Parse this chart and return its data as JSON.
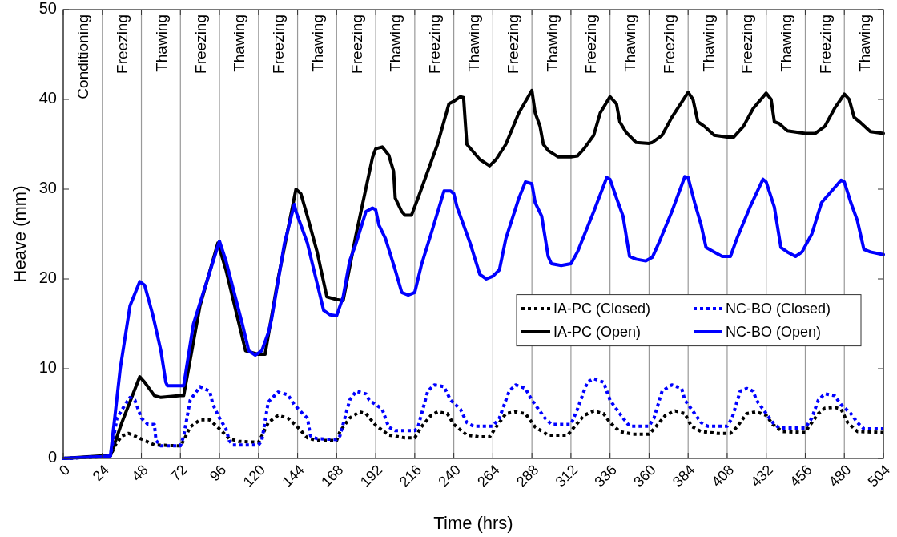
{
  "chart_data": {
    "type": "line",
    "xlabel": "Time (hrs)",
    "ylabel": "Heave (mm)",
    "xlim": [
      0,
      504
    ],
    "xticks": [
      0,
      24,
      48,
      72,
      96,
      120,
      144,
      168,
      192,
      216,
      240,
      264,
      288,
      312,
      336,
      360,
      384,
      408,
      432,
      456,
      480,
      504
    ],
    "ylim": [
      0,
      50
    ],
    "yticks": [
      0,
      10,
      20,
      30,
      40,
      50
    ],
    "legend": "right",
    "grid": "x",
    "annotations": [
      "Conditioning",
      "Freezing",
      "Thawing",
      "Freezing",
      "Thawing",
      "Freezing",
      "Thawing",
      "Freezing",
      "Thawing",
      "Freezing",
      "Thawing",
      "Freezing",
      "Thawing",
      "Freezing",
      "Thawing",
      "Freezing",
      "Thawing",
      "Freezing",
      "Thawing",
      "Freezing",
      "Thawing"
    ],
    "series": [
      {
        "name": "IA-PC (Closed)",
        "color": "#000000",
        "line_style": "dotted",
        "x": [
          0,
          24,
          29,
          32,
          36,
          40,
          44,
          50,
          56,
          72,
          74,
          78,
          84,
          90,
          96,
          102,
          108,
          120,
          122,
          126,
          132,
          138,
          144,
          150,
          156,
          168,
          170,
          176,
          182,
          186,
          192,
          200,
          210,
          216,
          220,
          226,
          230,
          236,
          240,
          248,
          256,
          262,
          266,
          272,
          278,
          284,
          290,
          298,
          310,
          314,
          320,
          326,
          332,
          336,
          342,
          350,
          360,
          364,
          370,
          376,
          382,
          386,
          392,
          402,
          410,
          414,
          420,
          426,
          432,
          436,
          442,
          456,
          458,
          464,
          468,
          474,
          478,
          482,
          488,
          504
        ],
        "values": [
          0,
          0.2,
          0.3,
          1.5,
          2.5,
          2.8,
          2.5,
          2,
          1.5,
          1.4,
          2,
          3.5,
          4.3,
          4.3,
          3.3,
          2.2,
          1.9,
          1.8,
          2.5,
          4,
          4.8,
          4.5,
          3.5,
          2.3,
          2,
          2,
          3,
          4.5,
          5.2,
          5,
          3.7,
          2.6,
          2.3,
          2.3,
          3.5,
          4.8,
          5.2,
          5,
          3.8,
          2.6,
          2.4,
          2.4,
          3.5,
          5,
          5.2,
          5,
          3.5,
          2.6,
          2.6,
          3.5,
          4.8,
          5.3,
          5,
          4,
          3,
          2.7,
          2.7,
          3.5,
          4.8,
          5.3,
          5,
          3.6,
          3,
          2.8,
          2.8,
          3.5,
          5,
          5.2,
          4.8,
          3.8,
          3,
          2.9,
          3.5,
          5,
          5.6,
          5.7,
          5.5,
          4,
          3,
          2.9
        ]
      },
      {
        "name": "IA-PC (Open)",
        "color": "#000000",
        "line_style": "solid",
        "x": [
          0,
          24,
          29,
          36,
          47,
          50,
          56,
          60,
          72,
          74,
          84,
          95,
          100,
          108,
          112,
          120,
          124,
          132,
          143,
          146,
          150,
          156,
          162,
          168,
          172,
          180,
          190,
          192,
          196,
          200,
          203,
          204,
          208,
          210,
          214,
          218,
          230,
          237,
          240,
          244,
          246,
          248,
          256,
          262,
          266,
          272,
          280,
          288,
          290,
          293,
          295,
          298,
          304,
          312,
          316,
          320,
          326,
          330,
          336,
          340,
          342,
          346,
          352,
          360,
          362,
          368,
          374,
          384,
          387,
          390,
          394,
          400,
          408,
          412,
          418,
          424,
          432,
          435,
          437,
          440,
          445,
          456,
          462,
          468,
          474,
          480,
          483,
          486,
          490,
          496,
          504
        ],
        "values": [
          0,
          0.3,
          0.3,
          4,
          9.1,
          8.5,
          7,
          6.8,
          7,
          7,
          17,
          24,
          21,
          15,
          12,
          11.6,
          11.6,
          20,
          30,
          29.5,
          27,
          23,
          18,
          17.7,
          17.6,
          25,
          33.5,
          34.5,
          34.7,
          33.8,
          32,
          29,
          27.5,
          27.1,
          27.1,
          29,
          35,
          39.5,
          39.8,
          40.3,
          40.2,
          35,
          33.3,
          32.6,
          33.3,
          35,
          38.5,
          41,
          38.5,
          37,
          35,
          34.3,
          33.6,
          33.6,
          33.7,
          34.5,
          36,
          38.5,
          40.3,
          39.5,
          37.5,
          36.3,
          35.2,
          35.1,
          35.2,
          36,
          38,
          40.8,
          40,
          37.5,
          37,
          36,
          35.8,
          35.8,
          37,
          39,
          40.7,
          40,
          37.5,
          37.3,
          36.5,
          36.2,
          36.2,
          37,
          39,
          40.6,
          40,
          38,
          37.4,
          36.4,
          36.2
        ]
      },
      {
        "name": "NC-BO (Closed)",
        "color": "#0000ff",
        "line_style": "dotted",
        "x": [
          0,
          24,
          29,
          33,
          38,
          41,
          44,
          48,
          52,
          56,
          57,
          60,
          72,
          74,
          78,
          84,
          90,
          92,
          96,
          100,
          102,
          104,
          120,
          122,
          126,
          132,
          138,
          142,
          146,
          150,
          152,
          156,
          168,
          170,
          176,
          180,
          186,
          188,
          192,
          196,
          200,
          204,
          216,
          218,
          224,
          228,
          234,
          238,
          244,
          248,
          252,
          264,
          268,
          274,
          278,
          284,
          288,
          292,
          296,
          300,
          312,
          316,
          322,
          326,
          332,
          336,
          340,
          344,
          348,
          360,
          363,
          368,
          374,
          380,
          382,
          388,
          392,
          396,
          408,
          411,
          416,
          420,
          424,
          426,
          430,
          436,
          440,
          456,
          460,
          464,
          468,
          474,
          478,
          484,
          488,
          492,
          504
        ],
        "values": [
          0,
          0.2,
          0.3,
          4.5,
          6,
          6.8,
          6.5,
          4.5,
          3.8,
          3.8,
          2,
          1.4,
          1.4,
          2.5,
          6.5,
          8,
          7.5,
          6,
          4.5,
          3.3,
          2,
          1.5,
          1.5,
          2,
          6.3,
          7.4,
          7.1,
          6,
          5.2,
          4.5,
          2.5,
          2.2,
          2.1,
          2.5,
          6.5,
          7.5,
          7.2,
          6.5,
          6,
          5.5,
          3.5,
          3.1,
          3.1,
          3.5,
          7.5,
          8.2,
          8,
          6.5,
          5.5,
          4,
          3.6,
          3.6,
          4.5,
          7.5,
          8.2,
          7.8,
          6.5,
          5.5,
          4.5,
          3.8,
          3.8,
          5.5,
          8.5,
          8.9,
          8.5,
          6.5,
          5.5,
          4.5,
          3.6,
          3.6,
          4.5,
          7.5,
          8.2,
          7.8,
          6.5,
          5,
          4,
          3.6,
          3.6,
          4.5,
          7.5,
          7.8,
          7.5,
          6.5,
          5.5,
          4,
          3.4,
          3.4,
          4.5,
          6.5,
          7.2,
          7,
          6,
          5,
          4,
          3.3,
          3.3
        ]
      },
      {
        "name": "NC-BO (Open)",
        "color": "#0000ff",
        "line_style": "solid",
        "x": [
          0,
          24,
          29,
          35,
          41,
          47,
          50,
          55,
          60,
          63,
          64,
          72,
          74,
          80,
          96,
          100,
          110,
          114,
          118,
          122,
          126,
          128,
          136,
          142,
          143,
          146,
          150,
          156,
          160,
          164,
          168,
          172,
          176,
          180,
          186,
          190,
          192,
          194,
          198,
          204,
          208,
          212,
          216,
          220,
          226,
          234,
          238,
          240,
          242,
          246,
          250,
          256,
          260,
          264,
          268,
          272,
          280,
          284,
          288,
          290,
          294,
          298,
          300,
          306,
          312,
          316,
          320,
          326,
          334,
          336,
          340,
          344,
          348,
          352,
          358,
          362,
          366,
          374,
          382,
          384,
          388,
          392,
          395,
          400,
          405,
          410,
          414,
          422,
          430,
          432,
          437,
          441,
          445,
          450,
          454,
          460,
          466,
          478,
          480,
          484,
          488,
          492,
          496,
          504
        ],
        "values": [
          0,
          0.2,
          0.3,
          10,
          17,
          19.7,
          19.3,
          16,
          12,
          8.5,
          8.1,
          8.1,
          8.1,
          15,
          24.2,
          22,
          15,
          12,
          11.5,
          12,
          14,
          15.5,
          24,
          28.3,
          27.5,
          26,
          24,
          19.5,
          16.5,
          16,
          15.9,
          18,
          22,
          24,
          27.5,
          27.9,
          27.7,
          26,
          24.5,
          21,
          18.5,
          18.2,
          18.5,
          21.5,
          25,
          29.8,
          29.8,
          29.5,
          28,
          26,
          24,
          20.5,
          20,
          20.3,
          21,
          24.5,
          29,
          30.8,
          30.6,
          28.5,
          27,
          22.5,
          21.7,
          21.5,
          21.7,
          23,
          24.8,
          27.5,
          31.3,
          31.1,
          29,
          27,
          22.5,
          22.2,
          22,
          22.4,
          24,
          27.5,
          31.4,
          31.3,
          28.5,
          26,
          23.5,
          23,
          22.5,
          22.5,
          24.5,
          28,
          31.1,
          30.8,
          28,
          23.5,
          23,
          22.5,
          23,
          25,
          28.5,
          31,
          30.8,
          28.5,
          26.5,
          23.3,
          23,
          22.7
        ]
      }
    ]
  }
}
